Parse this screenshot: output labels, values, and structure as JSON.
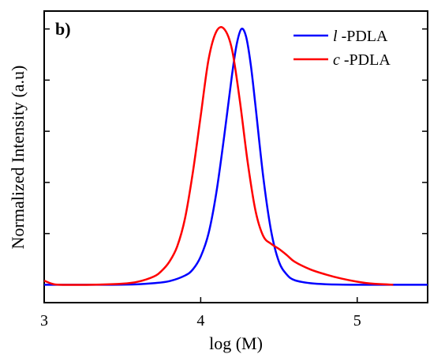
{
  "chart_data": {
    "type": "line",
    "panel_label": "b)",
    "xlabel": "log (M)",
    "ylabel": "Normalized Intensity (a.u)",
    "xlim": [
      3,
      5.45
    ],
    "ylim": [
      -0.35,
      5.35
    ],
    "x_ticks": [
      {
        "value": 3,
        "label": "3"
      },
      {
        "value": 4,
        "label": "4"
      },
      {
        "value": 5,
        "label": "5"
      }
    ],
    "y_ticks": [
      0,
      1,
      2,
      3,
      4,
      5
    ],
    "legend_position": "top-right",
    "series": [
      {
        "name_italic": "l",
        "name_rest": " -PDLA",
        "color": "#0000ff",
        "x": [
          3.0,
          3.2,
          3.4,
          3.6,
          3.7,
          3.8,
          3.9,
          3.95,
          4.0,
          4.05,
          4.1,
          4.15,
          4.2,
          4.23,
          4.26,
          4.29,
          4.32,
          4.35,
          4.4,
          4.45,
          4.5,
          4.55,
          4.6,
          4.7,
          4.8,
          5.0,
          5.2,
          5.45
        ],
        "y": [
          0.0,
          0.0,
          0.0,
          0.01,
          0.03,
          0.07,
          0.18,
          0.3,
          0.55,
          1.0,
          1.8,
          2.9,
          4.1,
          4.7,
          5.0,
          4.85,
          4.3,
          3.5,
          2.1,
          1.05,
          0.45,
          0.2,
          0.09,
          0.03,
          0.01,
          0.0,
          0.0,
          0.0
        ]
      },
      {
        "name_italic": "c",
        "name_rest": " -PDLA",
        "color": "#ff0000",
        "x": [
          3.0,
          3.05,
          3.1,
          3.3,
          3.5,
          3.6,
          3.7,
          3.75,
          3.8,
          3.85,
          3.9,
          3.95,
          4.0,
          4.05,
          4.1,
          4.15,
          4.2,
          4.25,
          4.3,
          4.35,
          4.4,
          4.45,
          4.5,
          4.55,
          4.6,
          4.7,
          4.8,
          4.9,
          5.0,
          5.1,
          5.23
        ],
        "y": [
          0.08,
          0.02,
          0.0,
          0.0,
          0.02,
          0.06,
          0.16,
          0.27,
          0.45,
          0.75,
          1.3,
          2.2,
          3.3,
          4.4,
          4.95,
          5.0,
          4.6,
          3.6,
          2.4,
          1.45,
          0.95,
          0.8,
          0.7,
          0.58,
          0.45,
          0.3,
          0.2,
          0.12,
          0.06,
          0.02,
          0.0
        ]
      }
    ]
  }
}
